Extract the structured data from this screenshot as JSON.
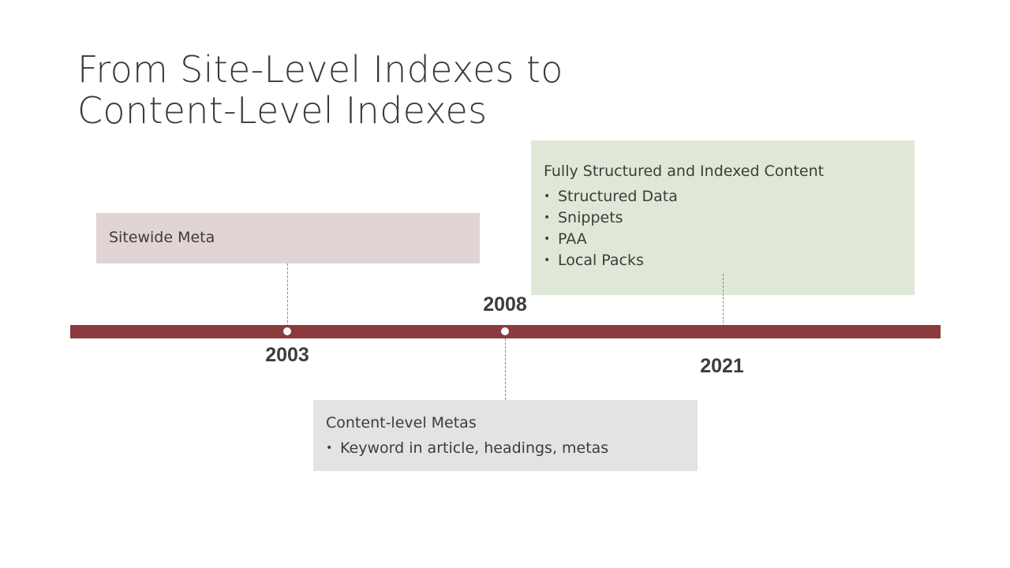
{
  "slide": {
    "title_line1": "From Site-Level Indexes to",
    "title_line2": "Content-Level Indexes"
  },
  "timeline": {
    "bar_color": "#8b3a3e",
    "milestones": [
      {
        "year": "2003",
        "label": "Sitewide Meta",
        "bullets": []
      },
      {
        "year": "2008",
        "label": "Content-level Metas",
        "bullets": [
          "Keyword in article, headings, metas"
        ]
      },
      {
        "year": "2021",
        "label": "Fully Structured and Indexed Content",
        "bullets": [
          "Structured Data",
          "Snippets",
          "PAA",
          "Local Packs"
        ]
      }
    ]
  },
  "colors": {
    "sitewide_card": "#e0d4d4",
    "content_card": "#e3e3e3",
    "structured_card": "#dfe8d7"
  }
}
